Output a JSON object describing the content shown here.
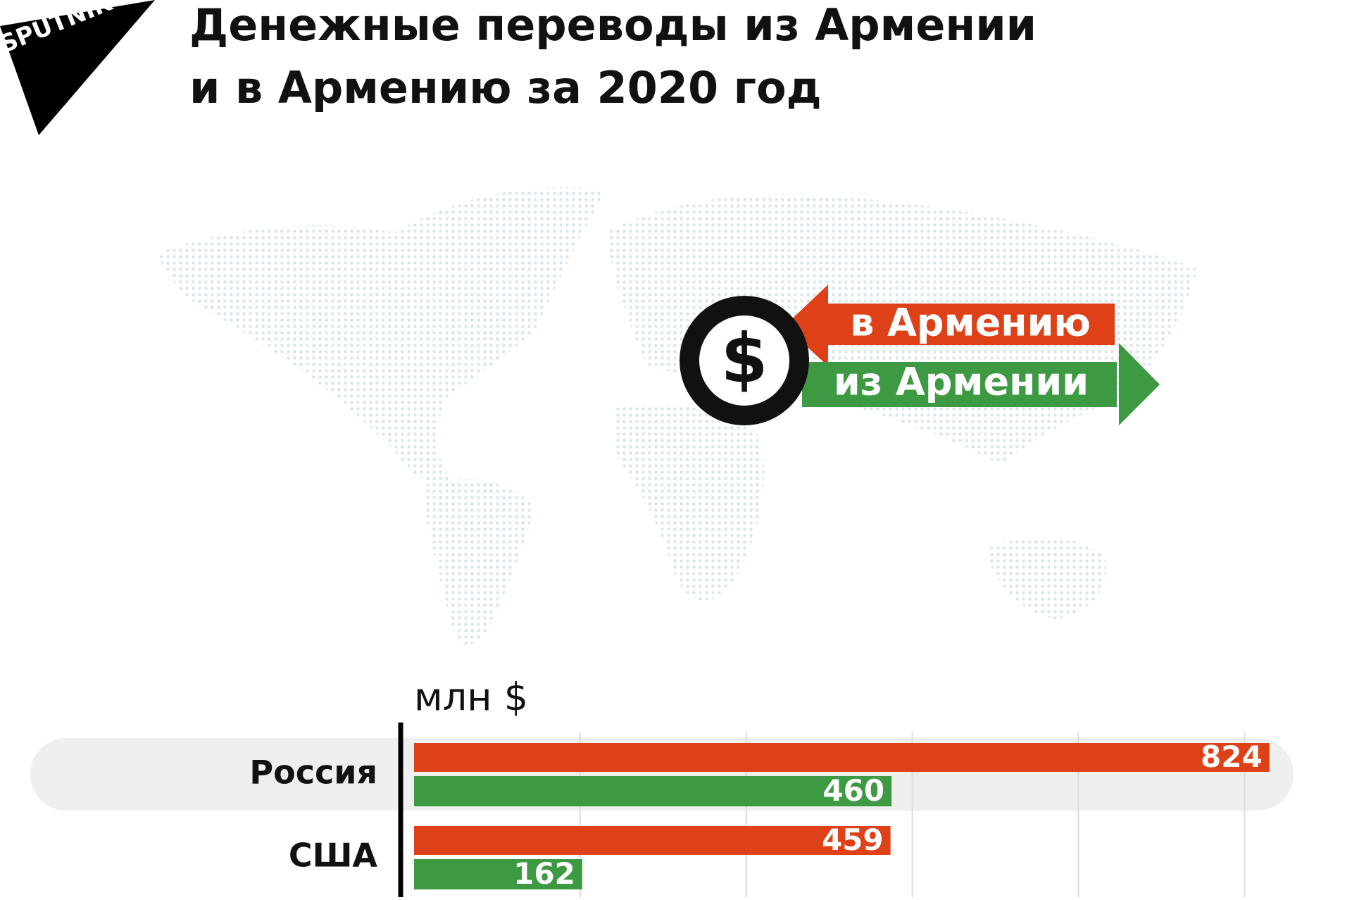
{
  "brand": "SPUTNIK",
  "chart_data": {
    "type": "hbar",
    "title": [
      "Денежные переводы из Армении",
      "и в Армению за 2020 год"
    ],
    "unit": "млн $",
    "categories": [
      "Россия",
      "США"
    ],
    "series": [
      {
        "name": "в Армению",
        "color": "#de4117",
        "values": [
          824,
          459
        ]
      },
      {
        "name": "из Армении",
        "color": "#3e9a42",
        "values": [
          460,
          162
        ]
      }
    ],
    "xlim": [
      0,
      850
    ],
    "grid_lines": [
      160,
      320,
      480,
      640,
      800
    ],
    "grid": true
  }
}
